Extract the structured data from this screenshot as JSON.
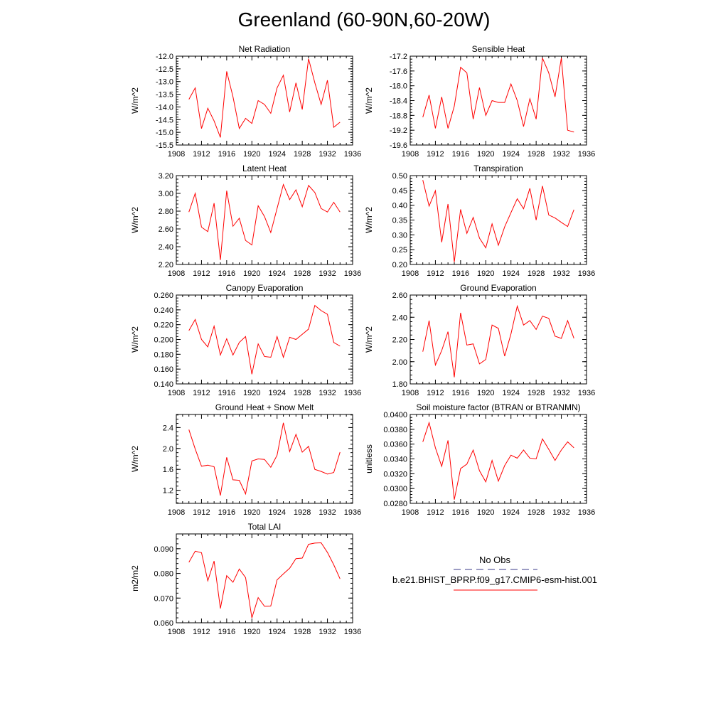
{
  "title": "Greenland (60-90N,60-20W)",
  "legend": {
    "obs_label": "No Obs",
    "model_label": "b.e21.BHIST_BPRP.f09_g17.CMIP6-esm-hist.001",
    "obs_color": "#3a3a8a",
    "model_color": "#ff0000"
  },
  "chart_data": [
    {
      "type": "line",
      "title": "Net Radiation",
      "ylabel": "W/m^2",
      "xlim": [
        1908,
        1936
      ],
      "ylim": [
        -15.5,
        -12.0
      ],
      "xticks": [
        "1908",
        "1912",
        "1916",
        "1920",
        "1924",
        "1928",
        "1932",
        "1936"
      ],
      "yticks": [
        "-15.5",
        "-15.0",
        "-14.5",
        "-14.0",
        "-13.5",
        "-13.0",
        "-12.5",
        "-12.0"
      ],
      "x": [
        1910,
        1911,
        1912,
        1913,
        1914,
        1915,
        1916,
        1917,
        1918,
        1919,
        1920,
        1921,
        1922,
        1923,
        1924,
        1925,
        1926,
        1927,
        1928,
        1929,
        1930,
        1931,
        1932,
        1933,
        1934
      ],
      "series": [
        {
          "name": "b.e21.BHIST_BPRP.f09_g17.CMIP6-esm-hist.001",
          "values": [
            -13.7,
            -13.25,
            -14.85,
            -14.05,
            -14.55,
            -15.2,
            -12.6,
            -13.6,
            -14.85,
            -14.45,
            -14.65,
            -13.75,
            -13.9,
            -14.25,
            -13.25,
            -12.75,
            -14.2,
            -13.05,
            -14.1,
            -12.1,
            -13.05,
            -13.9,
            -12.95,
            -14.8,
            -14.6
          ]
        }
      ]
    },
    {
      "type": "line",
      "title": "Sensible Heat",
      "ylabel": "W/m^2",
      "xlim": [
        1908,
        1936
      ],
      "ylim": [
        -19.6,
        -17.2
      ],
      "xticks": [
        "1908",
        "1912",
        "1916",
        "1920",
        "1924",
        "1928",
        "1932",
        "1936"
      ],
      "yticks": [
        "-19.6",
        "-19.2",
        "-18.8",
        "-18.4",
        "-18.0",
        "-17.6",
        "-17.2"
      ],
      "x": [
        1910,
        1911,
        1912,
        1913,
        1914,
        1915,
        1916,
        1917,
        1918,
        1919,
        1920,
        1921,
        1922,
        1923,
        1924,
        1925,
        1926,
        1927,
        1928,
        1929,
        1930,
        1931,
        1932,
        1933,
        1934
      ],
      "series": [
        {
          "name": "b.e21.BHIST_BPRP.f09_g17.CMIP6-esm-hist.001",
          "values": [
            -18.85,
            -18.25,
            -19.15,
            -18.3,
            -19.15,
            -18.55,
            -17.5,
            -17.65,
            -18.9,
            -18.05,
            -18.8,
            -18.4,
            -18.45,
            -18.45,
            -17.95,
            -18.4,
            -19.1,
            -18.35,
            -18.9,
            -17.25,
            -17.65,
            -18.3,
            -17.25,
            -19.2,
            -19.25
          ]
        }
      ]
    },
    {
      "type": "line",
      "title": "Latent Heat",
      "ylabel": "W/m^2",
      "xlim": [
        1908,
        1936
      ],
      "ylim": [
        2.2,
        3.2
      ],
      "xticks": [
        "1908",
        "1912",
        "1916",
        "1920",
        "1924",
        "1928",
        "1932",
        "1936"
      ],
      "yticks": [
        "2.20",
        "2.40",
        "2.60",
        "2.80",
        "3.00",
        "3.20"
      ],
      "x": [
        1910,
        1911,
        1912,
        1913,
        1914,
        1915,
        1916,
        1917,
        1918,
        1919,
        1920,
        1921,
        1922,
        1923,
        1924,
        1925,
        1926,
        1927,
        1928,
        1929,
        1930,
        1931,
        1932,
        1933,
        1934
      ],
      "series": [
        {
          "name": "b.e21.BHIST_BPRP.f09_g17.CMIP6-esm-hist.001",
          "values": [
            2.79,
            3.0,
            2.62,
            2.57,
            2.89,
            2.25,
            3.03,
            2.63,
            2.72,
            2.47,
            2.42,
            2.86,
            2.74,
            2.56,
            2.83,
            3.1,
            2.93,
            3.04,
            2.85,
            3.09,
            3.01,
            2.83,
            2.79,
            2.9,
            2.79
          ]
        }
      ]
    },
    {
      "type": "line",
      "title": "Transpiration",
      "ylabel": "W/m^2",
      "xlim": [
        1908,
        1936
      ],
      "ylim": [
        0.2,
        0.5
      ],
      "xticks": [
        "1908",
        "1912",
        "1916",
        "1920",
        "1924",
        "1928",
        "1932",
        "1936"
      ],
      "yticks": [
        "0.20",
        "0.25",
        "0.30",
        "0.35",
        "0.40",
        "0.45",
        "0.50"
      ],
      "x": [
        1910,
        1911,
        1912,
        1913,
        1914,
        1915,
        1916,
        1917,
        1918,
        1919,
        1920,
        1921,
        1922,
        1923,
        1924,
        1925,
        1926,
        1927,
        1928,
        1929,
        1930,
        1931,
        1932,
        1933,
        1934
      ],
      "series": [
        {
          "name": "b.e21.BHIST_BPRP.f09_g17.CMIP6-esm-hist.001",
          "values": [
            0.485,
            0.397,
            0.449,
            0.275,
            0.404,
            0.208,
            0.386,
            0.305,
            0.359,
            0.289,
            0.256,
            0.337,
            0.265,
            0.327,
            0.375,
            0.422,
            0.388,
            0.457,
            0.35,
            0.465,
            0.367,
            0.357,
            0.342,
            0.328,
            0.385
          ]
        }
      ]
    },
    {
      "type": "line",
      "title": "Canopy Evaporation",
      "ylabel": "W/m^2",
      "xlim": [
        1908,
        1936
      ],
      "ylim": [
        0.14,
        0.26
      ],
      "xticks": [
        "1908",
        "1912",
        "1916",
        "1920",
        "1924",
        "1928",
        "1932",
        "1936"
      ],
      "yticks": [
        "0.140",
        "0.160",
        "0.180",
        "0.200",
        "0.220",
        "0.240",
        "0.260"
      ],
      "x": [
        1910,
        1911,
        1912,
        1913,
        1914,
        1915,
        1916,
        1917,
        1918,
        1919,
        1920,
        1921,
        1922,
        1923,
        1924,
        1925,
        1926,
        1927,
        1928,
        1929,
        1930,
        1931,
        1932,
        1933,
        1934
      ],
      "series": [
        {
          "name": "b.e21.BHIST_BPRP.f09_g17.CMIP6-esm-hist.001",
          "values": [
            0.212,
            0.227,
            0.2,
            0.19,
            0.218,
            0.179,
            0.201,
            0.179,
            0.196,
            0.204,
            0.153,
            0.194,
            0.177,
            0.176,
            0.204,
            0.176,
            0.203,
            0.2,
            0.207,
            0.214,
            0.246,
            0.239,
            0.234,
            0.196,
            0.191
          ]
        }
      ]
    },
    {
      "type": "line",
      "title": "Ground Evaporation",
      "ylabel": "W/m^2",
      "xlim": [
        1908,
        1936
      ],
      "ylim": [
        1.8,
        2.6
      ],
      "xticks": [
        "1908",
        "1912",
        "1916",
        "1920",
        "1924",
        "1928",
        "1932",
        "1936"
      ],
      "yticks": [
        "1.80",
        "2.00",
        "2.20",
        "2.40",
        "2.60"
      ],
      "x": [
        1910,
        1911,
        1912,
        1913,
        1914,
        1915,
        1916,
        1917,
        1918,
        1919,
        1920,
        1921,
        1922,
        1923,
        1924,
        1925,
        1926,
        1927,
        1928,
        1929,
        1930,
        1931,
        1932,
        1933,
        1934
      ],
      "series": [
        {
          "name": "b.e21.BHIST_BPRP.f09_g17.CMIP6-esm-hist.001",
          "values": [
            2.09,
            2.37,
            1.97,
            2.1,
            2.27,
            1.86,
            2.44,
            2.15,
            2.16,
            1.98,
            2.02,
            2.33,
            2.3,
            2.05,
            2.25,
            2.5,
            2.33,
            2.37,
            2.29,
            2.41,
            2.39,
            2.23,
            2.21,
            2.37,
            2.21
          ]
        }
      ]
    },
    {
      "type": "line",
      "title": "Ground Heat + Snow Melt",
      "ylabel": "W/m^2",
      "xlim": [
        1908,
        1936
      ],
      "ylim": [
        0.95,
        2.65
      ],
      "xticks": [
        "1908",
        "1912",
        "1916",
        "1920",
        "1924",
        "1928",
        "1932",
        "1936"
      ],
      "yticks": [
        "1.2",
        "1.6",
        "2.0",
        "2.4"
      ],
      "x": [
        1910,
        1911,
        1912,
        1913,
        1914,
        1915,
        1916,
        1917,
        1918,
        1919,
        1920,
        1921,
        1922,
        1923,
        1924,
        1925,
        1926,
        1927,
        1928,
        1929,
        1930,
        1931,
        1932,
        1933,
        1934
      ],
      "series": [
        {
          "name": "b.e21.BHIST_BPRP.f09_g17.CMIP6-esm-hist.001",
          "values": [
            2.36,
            1.99,
            1.66,
            1.68,
            1.65,
            1.1,
            1.83,
            1.4,
            1.39,
            1.13,
            1.76,
            1.8,
            1.79,
            1.64,
            1.87,
            2.49,
            1.94,
            2.27,
            1.93,
            2.04,
            1.6,
            1.56,
            1.51,
            1.54,
            1.93
          ]
        }
      ]
    },
    {
      "type": "line",
      "title": "Soil moisture factor (BTRAN or BTRANMN)",
      "ylabel": "unitless",
      "xlim": [
        1908,
        1936
      ],
      "ylim": [
        0.028,
        0.04
      ],
      "xticks": [
        "1908",
        "1912",
        "1916",
        "1920",
        "1924",
        "1928",
        "1932",
        "1936"
      ],
      "yticks": [
        "0.0280",
        "0.0300",
        "0.0320",
        "0.0340",
        "0.0360",
        "0.0380",
        "0.0400"
      ],
      "x": [
        1910,
        1911,
        1912,
        1913,
        1914,
        1915,
        1916,
        1917,
        1918,
        1919,
        1920,
        1921,
        1922,
        1923,
        1924,
        1925,
        1926,
        1927,
        1928,
        1929,
        1930,
        1931,
        1932,
        1933,
        1934
      ],
      "series": [
        {
          "name": "b.e21.BHIST_BPRP.f09_g17.CMIP6-esm-hist.001",
          "values": [
            0.0363,
            0.0389,
            0.0355,
            0.033,
            0.0365,
            0.0285,
            0.0327,
            0.0333,
            0.0352,
            0.0324,
            0.0309,
            0.0338,
            0.031,
            0.0331,
            0.0345,
            0.0341,
            0.0352,
            0.0341,
            0.034,
            0.0367,
            0.0353,
            0.0338,
            0.0352,
            0.0363,
            0.0355
          ]
        }
      ]
    },
    {
      "type": "line",
      "title": "Total LAI",
      "ylabel": "m2/m2",
      "xlim": [
        1908,
        1936
      ],
      "ylim": [
        0.06,
        0.096
      ],
      "xticks": [
        "1908",
        "1912",
        "1916",
        "1920",
        "1924",
        "1928",
        "1932",
        "1936"
      ],
      "yticks": [
        "0.060",
        "0.070",
        "0.080",
        "0.090"
      ],
      "x": [
        1910,
        1911,
        1912,
        1913,
        1914,
        1915,
        1916,
        1917,
        1918,
        1919,
        1920,
        1921,
        1922,
        1923,
        1924,
        1925,
        1926,
        1927,
        1928,
        1929,
        1930,
        1931,
        1932,
        1933,
        1934
      ],
      "series": [
        {
          "name": "b.e21.BHIST_BPRP.f09_g17.CMIP6-esm-hist.001",
          "values": [
            0.0845,
            0.089,
            0.0884,
            0.077,
            0.085,
            0.0658,
            0.0791,
            0.0764,
            0.0818,
            0.0783,
            0.062,
            0.0702,
            0.0667,
            0.0668,
            0.0774,
            0.0798,
            0.0821,
            0.086,
            0.0862,
            0.0918,
            0.0923,
            0.0924,
            0.0885,
            0.0835,
            0.0778
          ]
        }
      ]
    }
  ]
}
